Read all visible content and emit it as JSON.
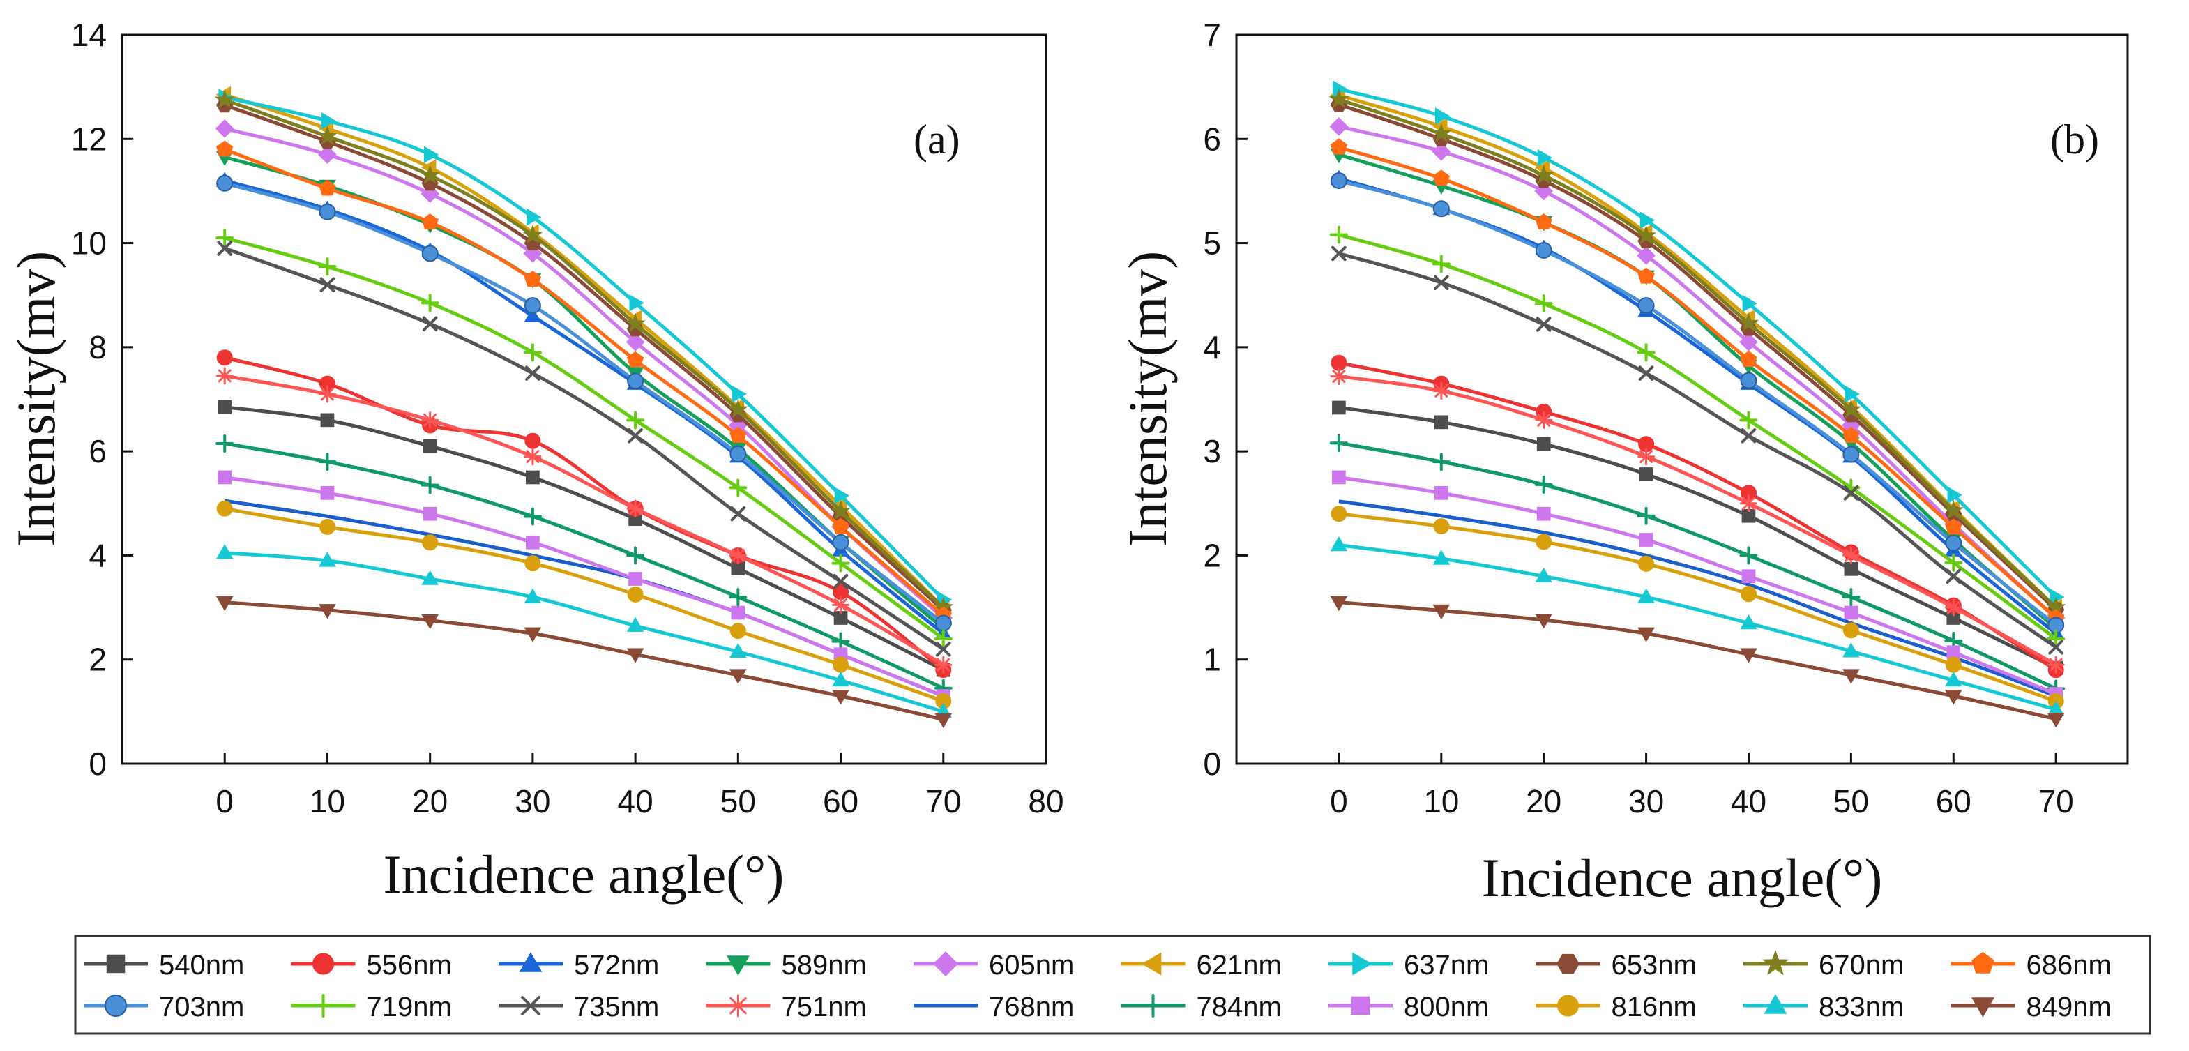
{
  "chart_data": [
    {
      "type": "line",
      "panel_label": "(a)",
      "xlabel": "Incidence angle(°)",
      "ylabel": "Intensity(mv)",
      "x": [
        0,
        10,
        20,
        30,
        40,
        50,
        60,
        70
      ],
      "xlim": [
        -10,
        80
      ],
      "ylim": [
        0,
        14
      ],
      "xticks": [
        "0",
        "10",
        "20",
        "30",
        "40",
        "50",
        "60",
        "70",
        "80"
      ],
      "yticks": [
        "0",
        "2",
        "4",
        "6",
        "8",
        "10",
        "12",
        "14"
      ],
      "grid": false,
      "series": [
        {
          "name": "540nm",
          "values": [
            6.85,
            6.6,
            6.1,
            5.5,
            4.7,
            3.75,
            2.8,
            1.8
          ]
        },
        {
          "name": "556nm",
          "values": [
            7.8,
            7.3,
            6.5,
            6.2,
            4.9,
            4.0,
            3.3,
            1.8
          ]
        },
        {
          "name": "572nm",
          "values": [
            11.2,
            10.65,
            9.85,
            8.6,
            7.3,
            5.9,
            4.1,
            2.5
          ]
        },
        {
          "name": "589nm",
          "values": [
            11.65,
            11.1,
            10.35,
            9.3,
            7.5,
            6.05,
            4.25,
            2.6
          ]
        },
        {
          "name": "605nm",
          "values": [
            12.2,
            11.7,
            10.95,
            9.8,
            8.1,
            6.5,
            4.55,
            2.8
          ]
        },
        {
          "name": "621nm",
          "values": [
            12.85,
            12.2,
            11.45,
            10.2,
            8.55,
            6.85,
            4.95,
            3.0
          ]
        },
        {
          "name": "637nm",
          "values": [
            12.8,
            12.35,
            11.7,
            10.5,
            8.85,
            7.1,
            5.15,
            3.15
          ]
        },
        {
          "name": "653nm",
          "values": [
            12.65,
            11.95,
            11.15,
            10.0,
            8.35,
            6.7,
            4.75,
            2.95
          ]
        },
        {
          "name": "670nm",
          "values": [
            12.75,
            12.05,
            11.3,
            10.15,
            8.45,
            6.8,
            4.85,
            3.0
          ]
        },
        {
          "name": "686nm",
          "values": [
            11.8,
            11.05,
            10.4,
            9.3,
            7.75,
            6.3,
            4.55,
            2.85
          ]
        },
        {
          "name": "703nm",
          "values": [
            11.15,
            10.6,
            9.8,
            8.8,
            7.35,
            5.95,
            4.25,
            2.7
          ]
        },
        {
          "name": "719nm",
          "values": [
            10.1,
            9.55,
            8.85,
            7.9,
            6.6,
            5.3,
            3.85,
            2.4
          ]
        },
        {
          "name": "735nm",
          "values": [
            9.9,
            9.2,
            8.45,
            7.5,
            6.3,
            4.8,
            3.5,
            2.2
          ]
        },
        {
          "name": "751nm",
          "values": [
            7.45,
            7.1,
            6.6,
            5.9,
            4.9,
            4.0,
            3.05,
            1.9
          ]
        },
        {
          "name": "768nm",
          "values": [
            5.05,
            4.75,
            4.4,
            4.0,
            3.55,
            2.9,
            2.1,
            1.3
          ]
        },
        {
          "name": "784nm",
          "values": [
            6.15,
            5.8,
            5.35,
            4.75,
            4.0,
            3.2,
            2.35,
            1.45
          ]
        },
        {
          "name": "800nm",
          "values": [
            5.5,
            5.2,
            4.8,
            4.25,
            3.55,
            2.9,
            2.1,
            1.3
          ]
        },
        {
          "name": "816nm",
          "values": [
            4.9,
            4.55,
            4.25,
            3.85,
            3.25,
            2.55,
            1.9,
            1.2
          ]
        },
        {
          "name": "833nm",
          "values": [
            4.05,
            3.9,
            3.55,
            3.2,
            2.65,
            2.15,
            1.6,
            1.0
          ]
        },
        {
          "name": "849nm",
          "values": [
            3.1,
            2.95,
            2.75,
            2.5,
            2.1,
            1.7,
            1.3,
            0.85
          ]
        }
      ]
    },
    {
      "type": "line",
      "panel_label": "(b)",
      "xlabel": "Incidence angle(°)",
      "ylabel": "Intensity(mv)",
      "x": [
        0,
        10,
        20,
        30,
        40,
        50,
        60,
        70
      ],
      "xlim": [
        -10,
        77
      ],
      "ylim": [
        0,
        7
      ],
      "xticks": [
        "0",
        "10",
        "20",
        "30",
        "40",
        "50",
        "60",
        "70"
      ],
      "yticks": [
        "0",
        "1",
        "2",
        "3",
        "4",
        "5",
        "6",
        "7"
      ],
      "grid": false,
      "series": [
        {
          "name": "540nm",
          "values": [
            3.42,
            3.28,
            3.07,
            2.78,
            2.38,
            1.87,
            1.4,
            0.92
          ]
        },
        {
          "name": "556nm",
          "values": [
            3.85,
            3.65,
            3.38,
            3.07,
            2.6,
            2.03,
            1.52,
            0.9
          ]
        },
        {
          "name": "572nm",
          "values": [
            5.62,
            5.33,
            4.95,
            4.35,
            3.65,
            2.95,
            2.05,
            1.25
          ]
        },
        {
          "name": "589nm",
          "values": [
            5.85,
            5.55,
            5.2,
            4.68,
            3.82,
            3.08,
            2.15,
            1.3
          ]
        },
        {
          "name": "605nm",
          "values": [
            6.12,
            5.88,
            5.5,
            4.88,
            4.05,
            3.25,
            2.3,
            1.4
          ]
        },
        {
          "name": "621nm",
          "values": [
            6.42,
            6.12,
            5.72,
            5.1,
            4.28,
            3.43,
            2.45,
            1.5
          ]
        },
        {
          "name": "637nm",
          "values": [
            6.48,
            6.22,
            5.82,
            5.22,
            4.42,
            3.55,
            2.58,
            1.6
          ]
        },
        {
          "name": "653nm",
          "values": [
            6.33,
            6.0,
            5.6,
            5.02,
            4.18,
            3.35,
            2.4,
            1.48
          ]
        },
        {
          "name": "670nm",
          "values": [
            6.38,
            6.05,
            5.65,
            5.07,
            4.23,
            3.4,
            2.43,
            1.5
          ]
        },
        {
          "name": "686nm",
          "values": [
            5.92,
            5.62,
            5.2,
            4.68,
            3.88,
            3.15,
            2.27,
            1.4
          ]
        },
        {
          "name": "703nm",
          "values": [
            5.6,
            5.33,
            4.93,
            4.4,
            3.68,
            2.97,
            2.12,
            1.33
          ]
        },
        {
          "name": "719nm",
          "values": [
            5.08,
            4.8,
            4.42,
            3.95,
            3.3,
            2.65,
            1.93,
            1.2
          ]
        },
        {
          "name": "735nm",
          "values": [
            4.9,
            4.62,
            4.22,
            3.75,
            3.15,
            2.6,
            1.8,
            1.12
          ]
        },
        {
          "name": "751nm",
          "values": [
            3.72,
            3.58,
            3.3,
            2.95,
            2.5,
            2.0,
            1.5,
            0.95
          ]
        },
        {
          "name": "768nm",
          "values": [
            2.52,
            2.38,
            2.22,
            2.0,
            1.72,
            1.35,
            1.02,
            0.65
          ]
        },
        {
          "name": "784nm",
          "values": [
            3.08,
            2.9,
            2.68,
            2.38,
            2.0,
            1.6,
            1.18,
            0.72
          ]
        },
        {
          "name": "800nm",
          "values": [
            2.75,
            2.6,
            2.4,
            2.15,
            1.8,
            1.45,
            1.07,
            0.67
          ]
        },
        {
          "name": "816nm",
          "values": [
            2.4,
            2.28,
            2.13,
            1.92,
            1.63,
            1.28,
            0.95,
            0.6
          ]
        },
        {
          "name": "833nm",
          "values": [
            2.1,
            1.97,
            1.8,
            1.6,
            1.35,
            1.08,
            0.8,
            0.52
          ]
        },
        {
          "name": "849nm",
          "values": [
            1.55,
            1.47,
            1.38,
            1.25,
            1.05,
            0.85,
            0.65,
            0.43
          ]
        }
      ]
    }
  ],
  "legend": {
    "placement": "bottom",
    "items": [
      {
        "name": "540nm",
        "color": "#4d4d4d",
        "marker": "square"
      },
      {
        "name": "556nm",
        "color": "#ee3333",
        "marker": "circle"
      },
      {
        "name": "572nm",
        "color": "#1a66d9",
        "marker": "triangle-up"
      },
      {
        "name": "589nm",
        "color": "#14a05a",
        "marker": "triangle-down"
      },
      {
        "name": "605nm",
        "color": "#cc77ee",
        "marker": "diamond"
      },
      {
        "name": "621nm",
        "color": "#d9a00d",
        "marker": "triangle-left"
      },
      {
        "name": "637nm",
        "color": "#16c8d4",
        "marker": "triangle-right"
      },
      {
        "name": "653nm",
        "color": "#8b4a35",
        "marker": "hexagon"
      },
      {
        "name": "670nm",
        "color": "#7f7f1f",
        "marker": "star"
      },
      {
        "name": "686nm",
        "color": "#ff6a13",
        "marker": "pentagon"
      },
      {
        "name": "703nm",
        "color": "#4a90d9",
        "marker": "sphere"
      },
      {
        "name": "719nm",
        "color": "#66cc11",
        "marker": "plus"
      },
      {
        "name": "735nm",
        "color": "#555555",
        "marker": "x"
      },
      {
        "name": "751nm",
        "color": "#ff5555",
        "marker": "asterisk"
      },
      {
        "name": "768nm",
        "color": "#1a5fcc",
        "marker": "none"
      },
      {
        "name": "784nm",
        "color": "#0f9966",
        "marker": "plus"
      },
      {
        "name": "800nm",
        "color": "#cc77ee",
        "marker": "square"
      },
      {
        "name": "816nm",
        "color": "#d9a00d",
        "marker": "circle"
      },
      {
        "name": "833nm",
        "color": "#16c8d4",
        "marker": "triangle-up"
      },
      {
        "name": "849nm",
        "color": "#8b4a35",
        "marker": "triangle-down"
      }
    ]
  }
}
